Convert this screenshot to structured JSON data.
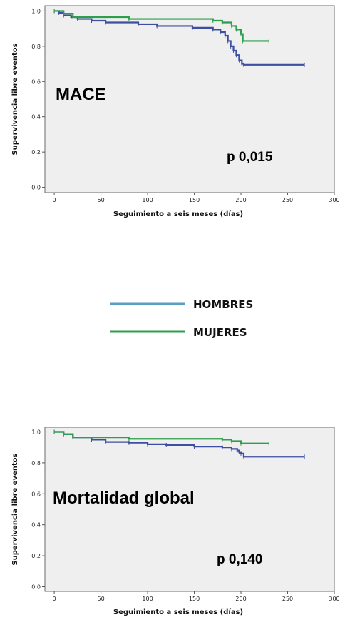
{
  "legend": [
    {
      "name": "HOMBRES",
      "color": "#5a9ec4"
    },
    {
      "name": "MUJERES",
      "color": "#2e9e4c"
    }
  ],
  "chart_data": [
    {
      "type": "line",
      "annotation": "MACE",
      "pvalue": "p 0,015",
      "xlabel": "Seguimiento a seis meses (días)",
      "ylabel": "Supervivencia libre eventos",
      "xlim": [
        -10,
        300
      ],
      "ylim": [
        -0.03,
        1.03
      ],
      "xticks": [
        "0",
        "50",
        "100",
        "150",
        "200",
        "250",
        "300"
      ],
      "yticks": [
        "0,0",
        "0,2",
        "0,4",
        "0,6",
        "0,8",
        "1,0"
      ],
      "grid": false,
      "series": [
        {
          "name": "HOMBRES",
          "color": "#3d4fa0",
          "x": [
            0,
            5,
            10,
            18,
            25,
            40,
            55,
            90,
            110,
            148,
            170,
            178,
            183,
            186,
            189,
            192,
            195,
            198,
            201,
            203,
            268
          ],
          "y": [
            1.0,
            0.99,
            0.975,
            0.965,
            0.955,
            0.945,
            0.935,
            0.925,
            0.915,
            0.905,
            0.895,
            0.88,
            0.86,
            0.83,
            0.8,
            0.775,
            0.75,
            0.72,
            0.7,
            0.695,
            0.695
          ]
        },
        {
          "name": "MUJERES",
          "color": "#2e9e4c",
          "x": [
            0,
            10,
            20,
            80,
            170,
            180,
            190,
            195,
            200,
            202,
            230
          ],
          "y": [
            1.0,
            0.985,
            0.965,
            0.955,
            0.945,
            0.935,
            0.915,
            0.895,
            0.87,
            0.83,
            0.83
          ]
        }
      ]
    },
    {
      "type": "line",
      "annotation": "Mortalidad global",
      "pvalue": "p 0,140",
      "xlabel": "Seguimiento a seis meses (días)",
      "ylabel": "Supervivencia libre eventos",
      "xlim": [
        -10,
        300
      ],
      "ylim": [
        -0.03,
        1.03
      ],
      "xticks": [
        "0",
        "50",
        "100",
        "150",
        "200",
        "250",
        "300"
      ],
      "yticks": [
        "0,0",
        "0,2",
        "0,4",
        "0,6",
        "0,8",
        "1,0"
      ],
      "grid": false,
      "series": [
        {
          "name": "HOMBRES",
          "color": "#3d4fa0",
          "x": [
            0,
            10,
            20,
            40,
            55,
            80,
            100,
            120,
            150,
            180,
            190,
            196,
            198,
            200,
            203,
            268
          ],
          "y": [
            1.0,
            0.985,
            0.965,
            0.95,
            0.935,
            0.93,
            0.92,
            0.915,
            0.905,
            0.9,
            0.89,
            0.88,
            0.87,
            0.86,
            0.84,
            0.84
          ]
        },
        {
          "name": "MUJERES",
          "color": "#2e9e4c",
          "x": [
            0,
            10,
            20,
            80,
            180,
            190,
            200,
            230
          ],
          "y": [
            1.0,
            0.985,
            0.965,
            0.955,
            0.95,
            0.94,
            0.925,
            0.925
          ]
        }
      ]
    }
  ]
}
